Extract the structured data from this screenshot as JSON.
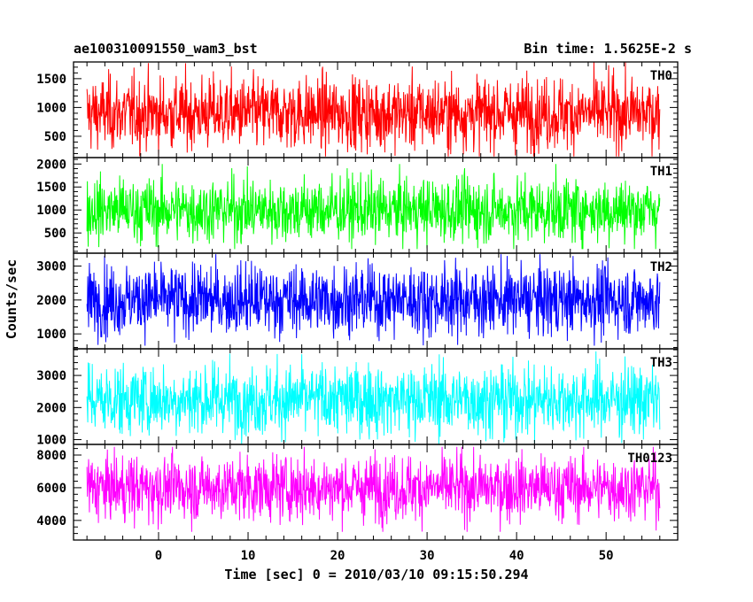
{
  "chart_data": {
    "type": "line",
    "title_left": "ae100310091550_wam3_bst",
    "title_right": "Bin time: 1.5625E-2 s",
    "xlabel": "Time [sec] 0 = 2010/03/10 09:15:50.294",
    "ylabel": "Counts/sec",
    "xlim": [
      -9.5,
      58
    ],
    "x_data_range": [
      -8,
      56
    ],
    "x_ticks": [
      0,
      10,
      20,
      30,
      40,
      50
    ],
    "x_tick_labels": [
      "0",
      "10",
      "20",
      "30",
      "40",
      "50"
    ],
    "panels": [
      {
        "name": "TH0",
        "color": "#ff0000",
        "ylim": [
          130,
          1790
        ],
        "y_ticks": [
          500,
          1000,
          1500
        ],
        "y_tick_labels": [
          "500",
          "1000",
          "1500"
        ],
        "signal": {
          "mean": 900,
          "low": 150,
          "high": 1790
        }
      },
      {
        "name": "TH1",
        "color": "#00ff00",
        "ylim": [
          60,
          2140
        ],
        "y_ticks": [
          500,
          1000,
          1500,
          2000
        ],
        "y_tick_labels": [
          "500",
          "1000",
          "1500",
          "2000"
        ],
        "signal": {
          "mean": 1000,
          "low": 150,
          "high": 2000
        }
      },
      {
        "name": "TH2",
        "color": "#0000ff",
        "ylim": [
          560,
          3380
        ],
        "y_ticks": [
          1000,
          2000,
          3000
        ],
        "y_tick_labels": [
          "1000",
          "2000",
          "3000"
        ],
        "signal": {
          "mean": 2000,
          "low": 650,
          "high": 3350
        }
      },
      {
        "name": "TH3",
        "color": "#00ffff",
        "ylim": [
          850,
          3830
        ],
        "y_ticks": [
          1000,
          2000,
          3000
        ],
        "y_tick_labels": [
          "1000",
          "2000",
          "3000"
        ],
        "signal": {
          "mean": 2250,
          "low": 850,
          "high": 3750
        }
      },
      {
        "name": "TH0123",
        "color": "#ff00ff",
        "ylim": [
          2800,
          8650
        ],
        "y_ticks": [
          4000,
          6000,
          8000
        ],
        "y_tick_labels": [
          "4000",
          "6000",
          "8000"
        ],
        "signal": {
          "mean": 6000,
          "low": 3300,
          "high": 8500
        }
      }
    ]
  }
}
